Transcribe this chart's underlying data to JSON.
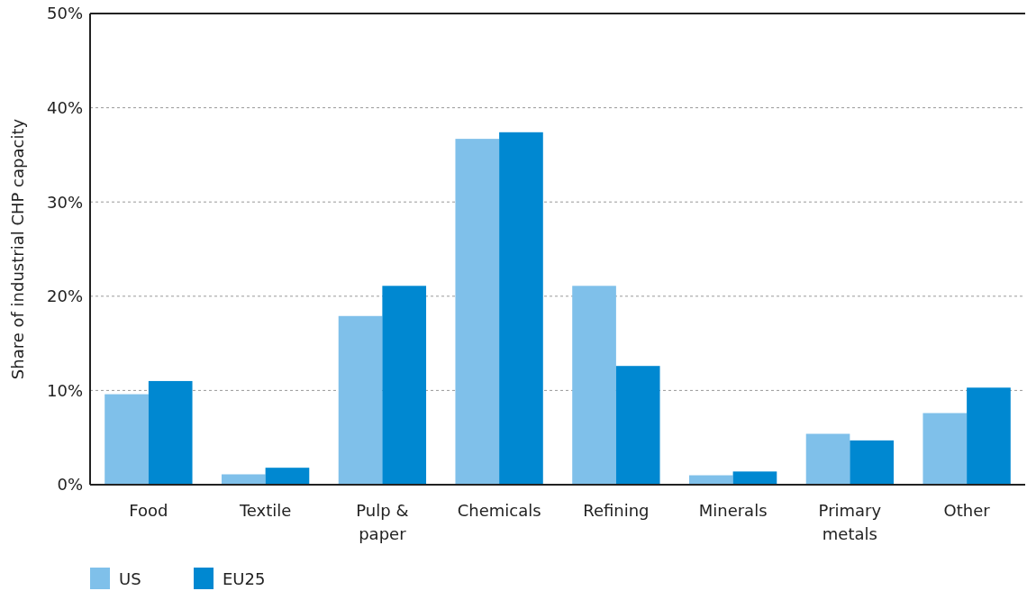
{
  "chart_data": {
    "type": "bar",
    "ylabel": "Share of industrial CHP capacity",
    "categories": [
      "Food",
      "Textile",
      "Pulp & paper",
      "Chemicals",
      "Refining",
      "Minerals",
      "Primary metals",
      "Other"
    ],
    "series": [
      {
        "name": "US",
        "color": "#7fc0ea",
        "values": [
          9.6,
          1.1,
          17.9,
          36.7,
          21.1,
          1.0,
          5.4,
          7.6
        ]
      },
      {
        "name": "EU25",
        "color": "#0088d1",
        "values": [
          11.0,
          1.8,
          21.1,
          37.4,
          12.6,
          1.4,
          4.7,
          10.3
        ]
      }
    ],
    "ylim": [
      0,
      50
    ],
    "yticks": [
      {
        "value": 0,
        "label": "0%"
      },
      {
        "value": 10,
        "label": "10%"
      },
      {
        "value": 20,
        "label": "20%"
      },
      {
        "value": 30,
        "label": "30%"
      },
      {
        "value": 40,
        "label": "40%"
      },
      {
        "value": 50,
        "label": "50%"
      }
    ],
    "grid": "y",
    "legend": "bottom left"
  }
}
